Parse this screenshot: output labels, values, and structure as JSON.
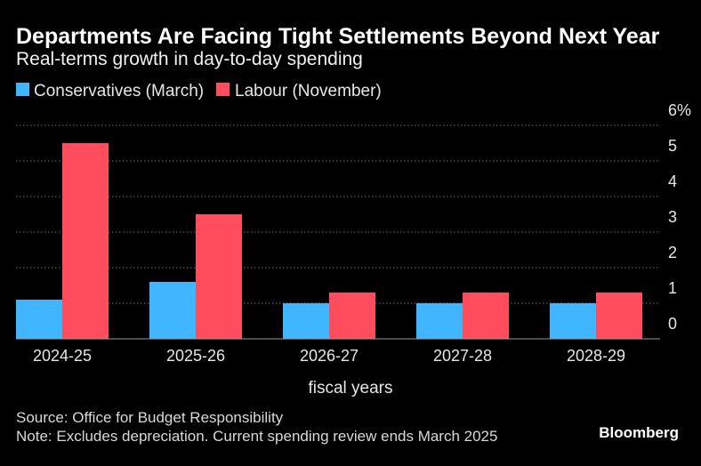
{
  "chart_data": {
    "type": "bar",
    "title": "Departments Are Facing Tight Settlements Beyond Next Year",
    "subtitle": "Real-terms growth in day-to-day spending",
    "categories": [
      "2024-25",
      "2025-26",
      "2026-27",
      "2027-28",
      "2028-29"
    ],
    "series": [
      {
        "name": "Conservatives (March)",
        "color": "#3FB6FF",
        "values": [
          1.1,
          1.6,
          1.0,
          1.0,
          1.0
        ]
      },
      {
        "name": "Labour (November)",
        "color": "#FF4D5E",
        "values": [
          5.5,
          3.5,
          1.3,
          1.3,
          1.3
        ]
      }
    ],
    "xlabel": "fiscal years",
    "ylim": [
      0,
      6
    ],
    "yticks": [
      0,
      1,
      2,
      3,
      4,
      5,
      6
    ],
    "ytick_labels": [
      "0",
      "1",
      "2",
      "3",
      "4",
      "5",
      "6%"
    ],
    "legend": "top-left",
    "grid": true
  },
  "footer": {
    "source": "Source: Office for Budget Responsibility",
    "note": "Note: Excludes depreciation. Current spending review ends March 2025",
    "brand": "Bloomberg"
  }
}
